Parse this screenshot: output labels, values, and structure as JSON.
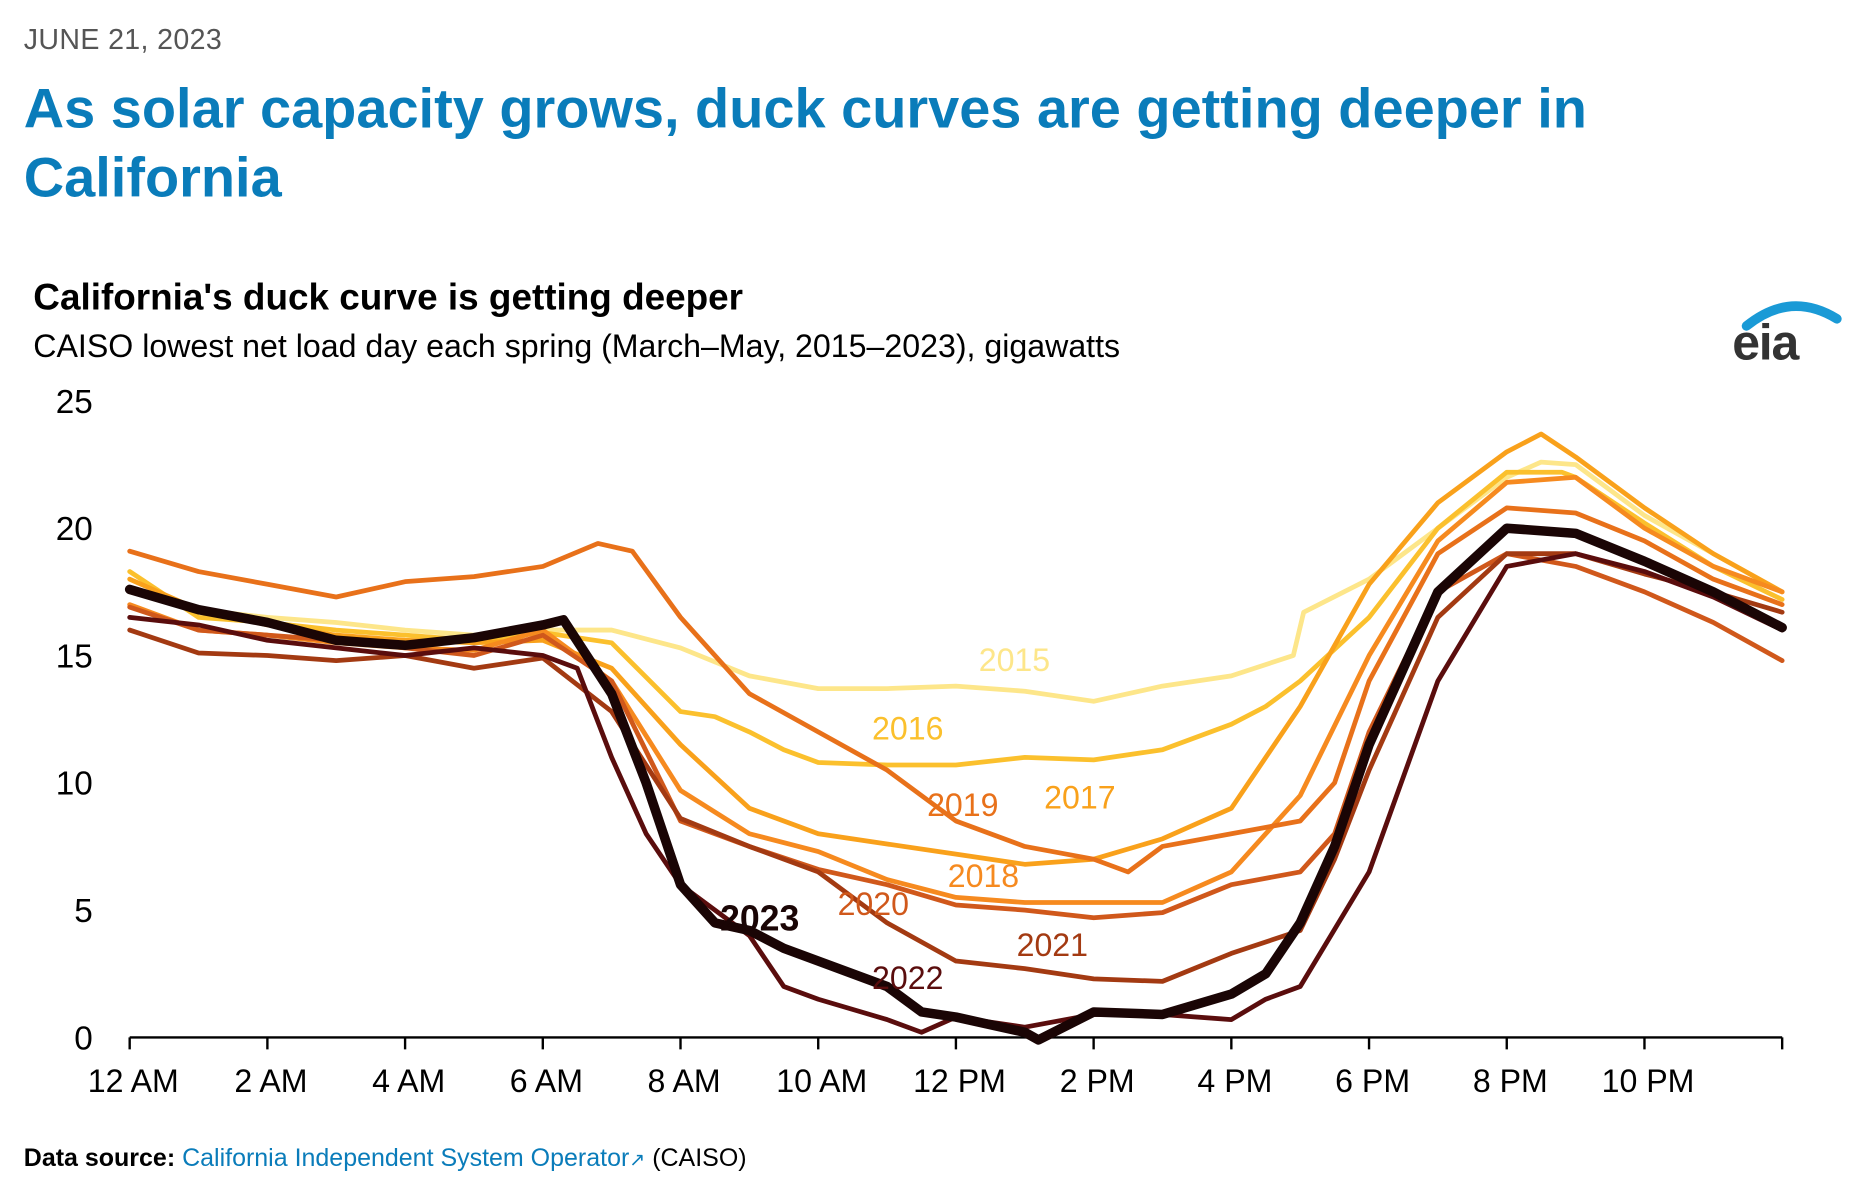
{
  "date": "JUNE 21, 2023",
  "headline": "As solar capacity grows, duck curves are getting deeper in California",
  "logo": "eia",
  "source": {
    "label": "Data source:",
    "link_text": "California Independent System Operator",
    "link_icon": "external-link-icon",
    "suffix": "(CAISO)"
  },
  "chart_data": {
    "type": "line",
    "title": "California's duck curve is getting deeper",
    "subtitle": "CAISO lowest net load day each spring (March–May, 2015–2023), gigawatts",
    "xlabel": "",
    "ylabel": "gigawatts",
    "xlim": [
      0,
      24
    ],
    "ylim": [
      0,
      25
    ],
    "yticks": [
      "0",
      "5",
      "10",
      "15",
      "20",
      "25"
    ],
    "yticks_values": [
      0,
      5,
      10,
      15,
      20,
      25
    ],
    "xticks": [
      "12 AM",
      "2 AM",
      "4 AM",
      "6 AM",
      "8 AM",
      "10 AM",
      "12 PM",
      "2 PM",
      "4 PM",
      "6 PM",
      "8 PM",
      "10 PM"
    ],
    "xticks_values": [
      0,
      2,
      4,
      6,
      8,
      10,
      12,
      14,
      16,
      18,
      20,
      22
    ],
    "grid": false,
    "series": [
      {
        "name": "2015",
        "color": "#fde68a",
        "label_at": [
          12.85,
          14.4
        ],
        "points": [
          [
            0,
            17.5
          ],
          [
            1,
            16.8
          ],
          [
            2,
            16.5
          ],
          [
            3,
            16.3
          ],
          [
            4,
            16.0
          ],
          [
            5,
            15.8
          ],
          [
            6,
            16.0
          ],
          [
            7,
            16.0
          ],
          [
            8,
            15.3
          ],
          [
            9,
            14.2
          ],
          [
            10,
            13.7
          ],
          [
            11,
            13.7
          ],
          [
            12,
            13.8
          ],
          [
            13,
            13.6
          ],
          [
            14,
            13.2
          ],
          [
            15,
            13.8
          ],
          [
            16,
            14.2
          ],
          [
            16.9,
            15.0
          ],
          [
            17.05,
            16.7
          ],
          [
            18,
            18.0
          ],
          [
            19,
            20.0
          ],
          [
            20,
            22.0
          ],
          [
            20.5,
            22.6
          ],
          [
            21,
            22.5
          ],
          [
            22,
            20.5
          ],
          [
            23,
            19.0
          ],
          [
            24,
            17.5
          ]
        ]
      },
      {
        "name": "2016",
        "color": "#fbc02d",
        "label_at": [
          11.3,
          11.7
        ],
        "points": [
          [
            0,
            18.3
          ],
          [
            1,
            16.5
          ],
          [
            2,
            16.3
          ],
          [
            3,
            16.0
          ],
          [
            4,
            15.8
          ],
          [
            5,
            15.6
          ],
          [
            6,
            15.9
          ],
          [
            7,
            15.5
          ],
          [
            8,
            12.8
          ],
          [
            8.5,
            12.6
          ],
          [
            9,
            12.0
          ],
          [
            9.5,
            11.3
          ],
          [
            10,
            10.8
          ],
          [
            11,
            10.7
          ],
          [
            12,
            10.7
          ],
          [
            13,
            11.0
          ],
          [
            14,
            10.9
          ],
          [
            15,
            11.3
          ],
          [
            16,
            12.3
          ],
          [
            16.5,
            13.0
          ],
          [
            17,
            14.0
          ],
          [
            18,
            16.5
          ],
          [
            19,
            20.0
          ],
          [
            20,
            22.2
          ],
          [
            20.8,
            22.2
          ],
          [
            21,
            22.0
          ],
          [
            22,
            20.2
          ],
          [
            23,
            18.5
          ],
          [
            24,
            17.2
          ]
        ]
      },
      {
        "name": "2017",
        "color": "#f9a11b",
        "label_at": [
          13.8,
          9.0
        ],
        "points": [
          [
            0,
            18.0
          ],
          [
            1,
            16.8
          ],
          [
            2,
            16.2
          ],
          [
            3,
            15.8
          ],
          [
            4,
            15.6
          ],
          [
            5,
            15.5
          ],
          [
            6,
            15.6
          ],
          [
            7,
            14.5
          ],
          [
            8,
            11.5
          ],
          [
            9,
            9.0
          ],
          [
            10,
            8.0
          ],
          [
            11,
            7.6
          ],
          [
            12,
            7.2
          ],
          [
            13,
            6.8
          ],
          [
            14,
            7.0
          ],
          [
            15,
            7.8
          ],
          [
            16,
            9.0
          ],
          [
            17,
            13.0
          ],
          [
            18,
            17.8
          ],
          [
            19,
            21.0
          ],
          [
            20,
            23.0
          ],
          [
            20.5,
            23.7
          ],
          [
            21,
            22.8
          ],
          [
            22,
            20.8
          ],
          [
            23,
            19.0
          ],
          [
            24,
            17.5
          ]
        ]
      },
      {
        "name": "2018",
        "color": "#f68a1f",
        "label_at": [
          12.4,
          5.9
        ],
        "points": [
          [
            0,
            17.0
          ],
          [
            1,
            16.0
          ],
          [
            2,
            15.8
          ],
          [
            3,
            15.5
          ],
          [
            4,
            15.3
          ],
          [
            5,
            15.2
          ],
          [
            6,
            16.0
          ],
          [
            7,
            14.0
          ],
          [
            8,
            9.7
          ],
          [
            9,
            8.0
          ],
          [
            10,
            7.3
          ],
          [
            11,
            6.2
          ],
          [
            12,
            5.5
          ],
          [
            13,
            5.3
          ],
          [
            14,
            5.3
          ],
          [
            15,
            5.3
          ],
          [
            16,
            6.5
          ],
          [
            17,
            9.5
          ],
          [
            18,
            15.0
          ],
          [
            19,
            19.5
          ],
          [
            20,
            21.8
          ],
          [
            21,
            22.0
          ],
          [
            22,
            20.0
          ],
          [
            23,
            18.5
          ],
          [
            24,
            17.5
          ]
        ]
      },
      {
        "name": "2019",
        "color": "#e8711a",
        "label_at": [
          12.1,
          8.7
        ],
        "points": [
          [
            0,
            19.1
          ],
          [
            1,
            18.3
          ],
          [
            2,
            17.8
          ],
          [
            3,
            17.3
          ],
          [
            4,
            17.9
          ],
          [
            5,
            18.1
          ],
          [
            6,
            18.5
          ],
          [
            6.8,
            19.4
          ],
          [
            7.3,
            19.1
          ],
          [
            8,
            16.5
          ],
          [
            9,
            13.5
          ],
          [
            10,
            12.0
          ],
          [
            11,
            10.5
          ],
          [
            12,
            8.5
          ],
          [
            13,
            7.5
          ],
          [
            14,
            7.0
          ],
          [
            14.5,
            6.5
          ],
          [
            15,
            7.5
          ],
          [
            16,
            8.0
          ],
          [
            17,
            8.5
          ],
          [
            17.5,
            10.0
          ],
          [
            18,
            14.0
          ],
          [
            19,
            19.0
          ],
          [
            20,
            20.8
          ],
          [
            21,
            20.6
          ],
          [
            22,
            19.5
          ],
          [
            23,
            18.0
          ],
          [
            24,
            17.0
          ]
        ]
      },
      {
        "name": "2020",
        "color": "#d0581b",
        "label_at": [
          10.8,
          4.8
        ],
        "points": [
          [
            0,
            16.9
          ],
          [
            1,
            16.0
          ],
          [
            2,
            15.8
          ],
          [
            3,
            15.6
          ],
          [
            4,
            15.3
          ],
          [
            5,
            15.0
          ],
          [
            6,
            15.8
          ],
          [
            7,
            14.0
          ],
          [
            8,
            8.5
          ],
          [
            9,
            7.5
          ],
          [
            10,
            6.6
          ],
          [
            11,
            6.0
          ],
          [
            12,
            5.2
          ],
          [
            13,
            5.0
          ],
          [
            14,
            4.7
          ],
          [
            15,
            4.9
          ],
          [
            16,
            6.0
          ],
          [
            17,
            6.5
          ],
          [
            17.5,
            8.0
          ],
          [
            18,
            12.0
          ],
          [
            19,
            17.5
          ],
          [
            20,
            19.0
          ],
          [
            21,
            18.5
          ],
          [
            22,
            17.5
          ],
          [
            23,
            16.3
          ],
          [
            24,
            14.8
          ]
        ]
      },
      {
        "name": "2021",
        "color": "#a33a12",
        "label_at": [
          13.4,
          3.2
        ],
        "points": [
          [
            0,
            16.0
          ],
          [
            1,
            15.1
          ],
          [
            2,
            15.0
          ],
          [
            3,
            14.8
          ],
          [
            4,
            15.0
          ],
          [
            5,
            14.5
          ],
          [
            6,
            14.9
          ],
          [
            7,
            12.8
          ],
          [
            8,
            8.6
          ],
          [
            9,
            7.5
          ],
          [
            10,
            6.5
          ],
          [
            11,
            4.5
          ],
          [
            12,
            3.0
          ],
          [
            13,
            2.7
          ],
          [
            14,
            2.3
          ],
          [
            15,
            2.2
          ],
          [
            16,
            3.3
          ],
          [
            17,
            4.2
          ],
          [
            17.5,
            7.0
          ],
          [
            18,
            10.5
          ],
          [
            19,
            16.5
          ],
          [
            20,
            19.0
          ],
          [
            21,
            19.0
          ],
          [
            22,
            18.2
          ],
          [
            23,
            17.5
          ],
          [
            24,
            16.7
          ]
        ]
      },
      {
        "name": "2022",
        "color": "#5a0d0d",
        "label_at": [
          11.3,
          1.9
        ],
        "points": [
          [
            0,
            16.5
          ],
          [
            1,
            16.2
          ],
          [
            2,
            15.6
          ],
          [
            3,
            15.3
          ],
          [
            4,
            15.0
          ],
          [
            5,
            15.3
          ],
          [
            6,
            15.0
          ],
          [
            6.5,
            14.5
          ],
          [
            7,
            11.0
          ],
          [
            7.5,
            8.0
          ],
          [
            8,
            6.0
          ],
          [
            9,
            4.0
          ],
          [
            9.5,
            2.0
          ],
          [
            10,
            1.5
          ],
          [
            11,
            0.7
          ],
          [
            11.5,
            0.2
          ],
          [
            12,
            0.8
          ],
          [
            13,
            0.4
          ],
          [
            14,
            0.9
          ],
          [
            15,
            0.9
          ],
          [
            16,
            0.7
          ],
          [
            16.5,
            1.5
          ],
          [
            17,
            2.0
          ],
          [
            18,
            6.5
          ],
          [
            19,
            14.0
          ],
          [
            20,
            18.5
          ],
          [
            21,
            19.0
          ],
          [
            22,
            18.3
          ],
          [
            23,
            17.3
          ],
          [
            24,
            16.0
          ]
        ]
      },
      {
        "name": "2023",
        "color": "#1a0505",
        "bold": true,
        "label_at": [
          9.15,
          4.2
        ],
        "points": [
          [
            0,
            17.6
          ],
          [
            1,
            16.8
          ],
          [
            2,
            16.3
          ],
          [
            3,
            15.6
          ],
          [
            4,
            15.4
          ],
          [
            5,
            15.7
          ],
          [
            6,
            16.2
          ],
          [
            6.3,
            16.4
          ],
          [
            7,
            13.5
          ],
          [
            7.5,
            10.0
          ],
          [
            8,
            6.0
          ],
          [
            8.5,
            4.5
          ],
          [
            9,
            4.2
          ],
          [
            9.5,
            3.5
          ],
          [
            10,
            3.0
          ],
          [
            11,
            2.0
          ],
          [
            11.5,
            1.0
          ],
          [
            12,
            0.8
          ],
          [
            13,
            0.2
          ],
          [
            13.2,
            -0.1
          ],
          [
            14,
            1.0
          ],
          [
            15,
            0.9
          ],
          [
            16,
            1.7
          ],
          [
            16.5,
            2.5
          ],
          [
            17,
            4.5
          ],
          [
            17.5,
            7.5
          ],
          [
            18,
            11.5
          ],
          [
            19,
            17.5
          ],
          [
            20,
            20.0
          ],
          [
            21,
            19.8
          ],
          [
            22,
            18.7
          ],
          [
            23,
            17.5
          ],
          [
            24,
            16.1
          ]
        ]
      }
    ]
  }
}
